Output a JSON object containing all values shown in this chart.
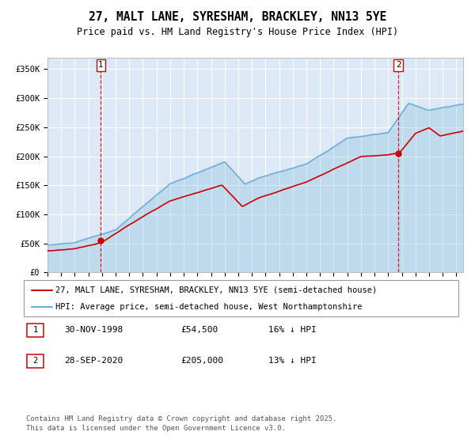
{
  "title": "27, MALT LANE, SYRESHAM, BRACKLEY, NN13 5YE",
  "subtitle": "Price paid vs. HM Land Registry's House Price Index (HPI)",
  "legend_line1": "27, MALT LANE, SYRESHAM, BRACKLEY, NN13 5YE (semi-detached house)",
  "legend_line2": "HPI: Average price, semi-detached house, West Northamptonshire",
  "footer": "Contains HM Land Registry data © Crown copyright and database right 2025.\nThis data is licensed under the Open Government Licence v3.0.",
  "marker1_date": "30-NOV-1998",
  "marker1_price": "£54,500",
  "marker1_hpi": "16% ↓ HPI",
  "marker2_date": "28-SEP-2020",
  "marker2_price": "£205,000",
  "marker2_hpi": "13% ↓ HPI",
  "ylim": [
    0,
    370000
  ],
  "xlim_start": 1995.0,
  "xlim_end": 2025.5,
  "hpi_color": "#6aaed6",
  "price_color": "#cc0000",
  "bg_color": "#dce8f5",
  "grid_color": "#ffffff",
  "vline_color": "#cc0000",
  "marker_box_color": "#cc0000",
  "title_fontsize": 10.5,
  "subtitle_fontsize": 8.5,
  "axis_fontsize": 7.5,
  "legend_fontsize": 7.5,
  "footer_fontsize": 6.5
}
